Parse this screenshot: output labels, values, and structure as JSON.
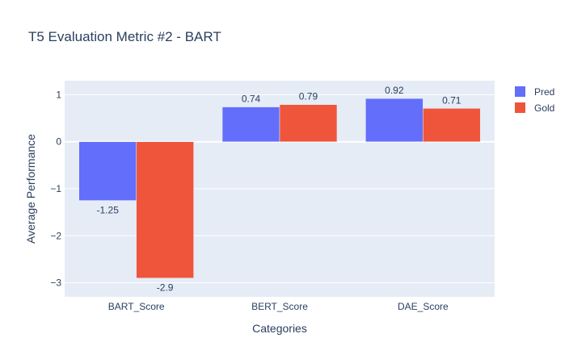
{
  "chart_data": {
    "type": "bar",
    "title": "T5 Evaluation Metric #2 - BART",
    "xlabel": "Categories",
    "ylabel": "Average Performance",
    "categories": [
      "BART_Score",
      "BERT_Score",
      "DAE_Score"
    ],
    "series": [
      {
        "name": "Pred",
        "color": "#636efa",
        "values": [
          -1.25,
          0.74,
          0.92
        ],
        "labels": [
          "-1.25",
          "0.74",
          "0.92"
        ]
      },
      {
        "name": "Gold",
        "color": "#ef553b",
        "values": [
          -2.9,
          0.79,
          0.71
        ],
        "labels": [
          "-2.9",
          "0.79",
          "0.71"
        ]
      }
    ],
    "ylim": [
      -3.3,
      1.3
    ],
    "yticks": [
      1,
      0,
      -1,
      -2,
      -3
    ],
    "ytick_labels": [
      "1",
      "0",
      "−1",
      "−2",
      "−3"
    ],
    "grid": true,
    "legend_position": "top-right",
    "colors": {
      "plot_bg": "#e5ecf6",
      "paper_bg": "#ffffff",
      "grid": "#ffffff",
      "text": "#2a3f5f"
    }
  }
}
